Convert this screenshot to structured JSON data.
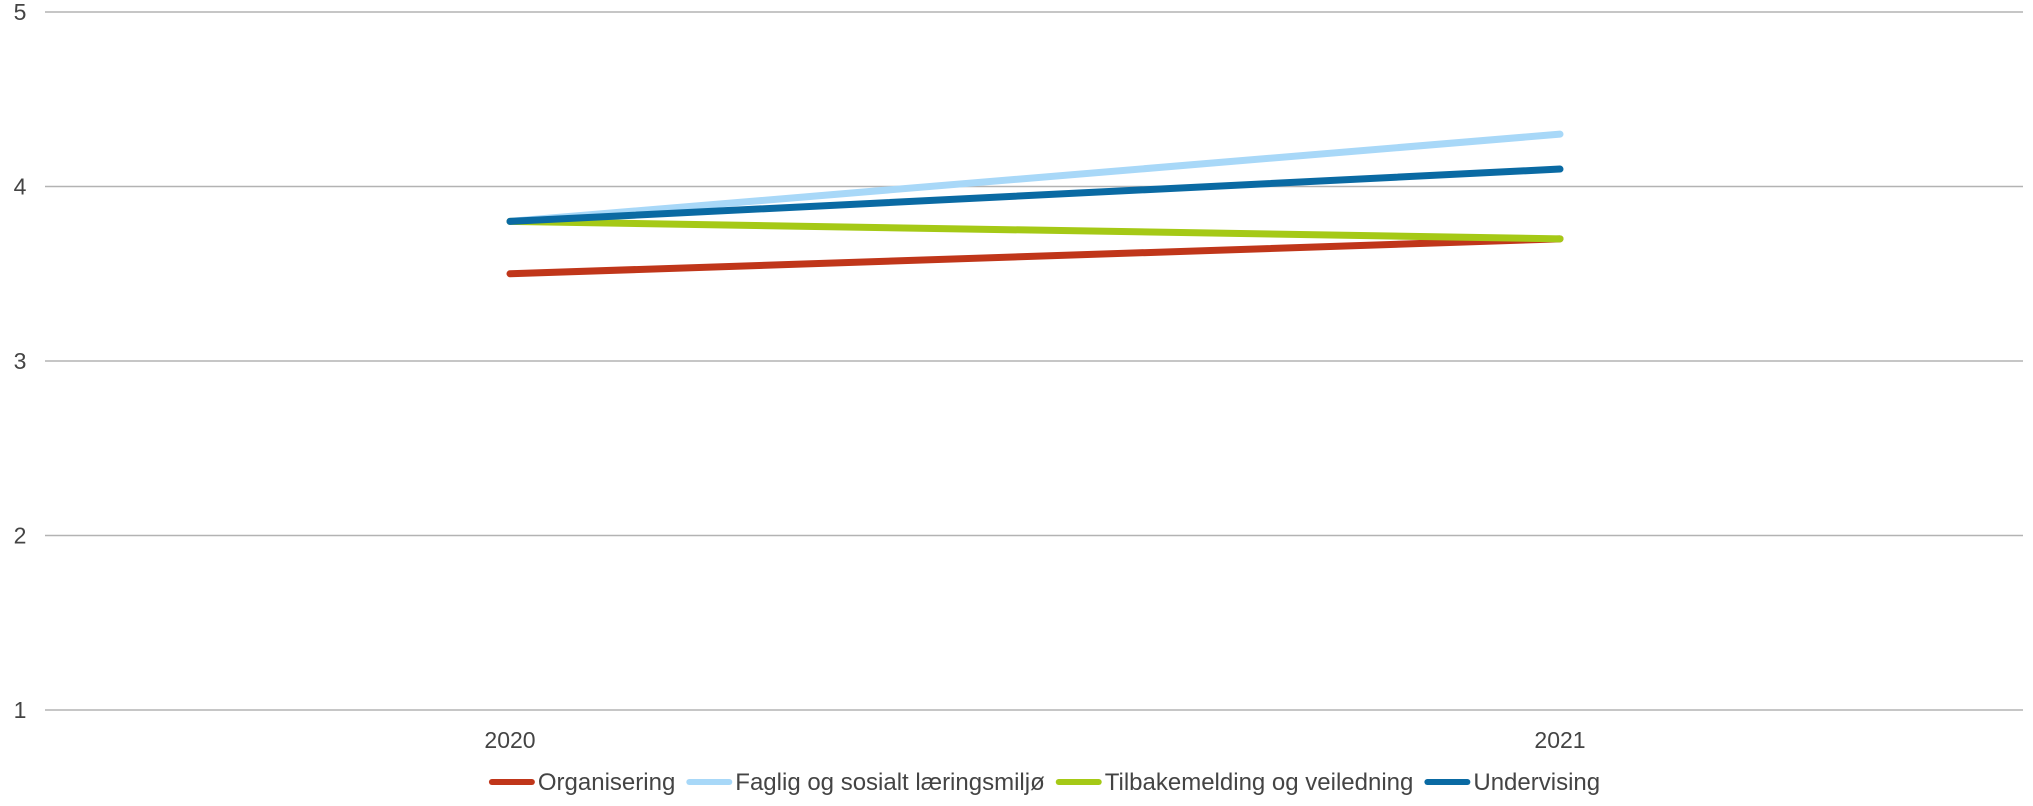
{
  "chart_data": {
    "type": "line",
    "title": "",
    "xlabel": "",
    "ylabel": "",
    "categories": [
      "2020",
      "2021"
    ],
    "ylim": [
      1,
      5
    ],
    "yticks": [
      1,
      2,
      3,
      4,
      5
    ],
    "grid": true,
    "legend_position": "bottom",
    "series": [
      {
        "name": "Organisering",
        "values": [
          3.5,
          3.7
        ],
        "color": "#c0361a"
      },
      {
        "name": "Faglig og sosialt læringsmiljø",
        "values": [
          3.8,
          4.3
        ],
        "color": "#a8d8f8"
      },
      {
        "name": "Tilbakemelding og veiledning",
        "values": [
          3.8,
          3.7
        ],
        "color": "#a5c916"
      },
      {
        "name": "Undervising",
        "values": [
          3.8,
          4.1
        ],
        "color": "#0a6aa3"
      }
    ]
  }
}
